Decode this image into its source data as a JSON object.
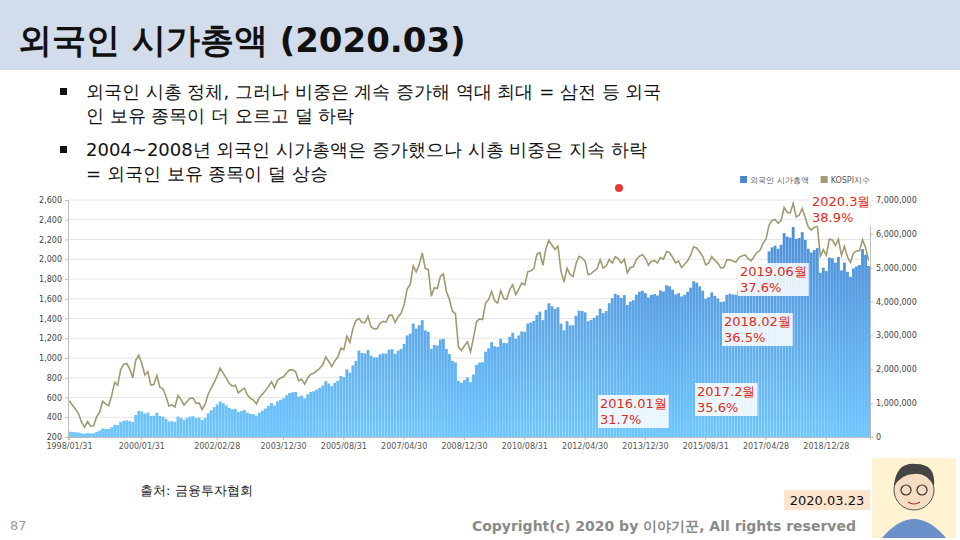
{
  "header": {
    "title": "외국인 시가총액 (2020.03)"
  },
  "bullets": [
    [
      "외국인 시총 정체, 그러나 비중은 계속 증가해 역대 최대 = 삼전 등 외국",
      "인 보유 종목이 더 오르고 덜 하락"
    ],
    [
      "2004~2008년 외국인 시가총액은 증가했으나 시총 비중은 지속 하락",
      "= 외국인 보유 종목이 덜 상승"
    ]
  ],
  "chart_data": {
    "type": "bar",
    "categories": [
      "1998/01/31",
      null,
      null,
      null,
      null,
      null,
      null,
      null,
      null,
      null,
      null,
      null,
      null,
      null,
      null,
      null,
      null,
      null,
      null,
      null,
      null,
      null,
      null,
      null,
      "2000/01/31",
      null,
      null,
      null,
      null,
      null,
      null,
      null,
      null,
      null,
      null,
      null,
      null,
      null,
      null,
      null,
      null,
      null,
      null,
      null,
      null,
      null,
      null,
      null,
      null,
      "2002/02/28",
      null,
      null,
      null,
      null,
      null,
      null,
      null,
      null,
      null,
      null,
      null,
      null,
      null,
      null,
      null,
      null,
      null,
      null,
      null,
      null,
      null,
      "2003/12/30",
      null,
      null,
      null,
      null,
      null,
      null,
      null,
      null,
      null,
      null,
      null,
      null,
      null,
      null,
      null,
      null,
      null,
      null,
      null,
      "2005/08/31",
      null,
      null,
      null,
      null,
      null,
      null,
      null,
      null,
      null,
      null,
      null,
      null,
      null,
      null,
      null,
      null,
      null,
      null,
      null,
      "2007/04/30",
      null,
      null,
      null,
      null,
      null,
      null,
      null,
      null,
      null,
      null,
      null,
      null,
      null,
      null,
      null,
      null,
      null,
      null,
      null,
      "2008/12/30",
      null,
      null,
      null,
      null,
      null,
      null,
      null,
      null,
      null,
      null,
      null,
      null,
      null,
      null,
      null,
      null,
      null,
      null,
      null,
      "2010/08/31",
      null,
      null,
      null,
      null,
      null,
      null,
      null,
      null,
      null,
      null,
      null,
      null,
      null,
      null,
      null,
      null,
      null,
      null,
      null,
      "2012/04/30",
      null,
      null,
      null,
      null,
      null,
      null,
      null,
      null,
      null,
      null,
      null,
      null,
      null,
      null,
      null,
      null,
      null,
      null,
      null,
      "2013/12/30",
      null,
      null,
      null,
      null,
      null,
      null,
      null,
      null,
      null,
      null,
      null,
      null,
      null,
      null,
      null,
      null,
      null,
      null,
      null,
      "2015/08/31",
      null,
      null,
      null,
      null,
      null,
      null,
      null,
      null,
      null,
      null,
      null,
      null,
      null,
      null,
      null,
      null,
      null,
      null,
      null,
      "2017/04/28",
      null,
      null,
      null,
      null,
      null,
      null,
      null,
      null,
      null,
      null,
      null,
      null,
      null,
      null,
      null,
      null,
      null,
      null,
      null,
      "2018/12/28",
      null,
      null,
      null,
      null,
      null,
      null,
      null,
      null,
      null,
      null,
      null,
      null,
      null,
      null
    ],
    "series": [
      {
        "name": "외국인 시가총액",
        "type": "bar",
        "axis": "y2",
        "color": "#4a86d0",
        "values": [
          160000,
          150000,
          140000,
          130000,
          110000,
          95000,
          120000,
          105000,
          110000,
          150000,
          190000,
          250000,
          240000,
          235000,
          290000,
          360000,
          350000,
          440000,
          480000,
          490000,
          470000,
          440000,
          650000,
          770000,
          760000,
          690000,
          720000,
          620000,
          630000,
          720000,
          620000,
          600000,
          540000,
          460000,
          470000,
          450000,
          600000,
          560000,
          510000,
          560000,
          600000,
          610000,
          560000,
          570000,
          500000,
          560000,
          700000,
          790000,
          880000,
          960000,
          1050000,
          1000000,
          930000,
          860000,
          820000,
          830000,
          740000,
          770000,
          800000,
          720000,
          680000,
          670000,
          630000,
          720000,
          780000,
          840000,
          920000,
          1000000,
          930000,
          1050000,
          1100000,
          1140000,
          1230000,
          1300000,
          1320000,
          1330000,
          1190000,
          1220000,
          1140000,
          1260000,
          1330000,
          1350000,
          1400000,
          1450000,
          1520000,
          1650000,
          1580000,
          1500000,
          1600000,
          1660000,
          1800000,
          1770000,
          2000000,
          1900000,
          2120000,
          2250000,
          2550000,
          2480000,
          2470000,
          2570000,
          2400000,
          2350000,
          2350000,
          2440000,
          2470000,
          2460000,
          2580000,
          2590000,
          2450000,
          2550000,
          2600000,
          2750000,
          3000000,
          3050000,
          3350000,
          3200000,
          3300000,
          3450000,
          3150000,
          3100000,
          2600000,
          2720000,
          2700000,
          2880000,
          2900000,
          2600000,
          2450000,
          2250000,
          2200000,
          1660000,
          1600000,
          1680000,
          1760000,
          1620000,
          1850000,
          2130000,
          2200000,
          2210000,
          2520000,
          2620000,
          2800000,
          2680000,
          2660000,
          2900000,
          2780000,
          2770000,
          2960000,
          3080000,
          2900000,
          3000000,
          3120000,
          3100000,
          3350000,
          3380000,
          3430000,
          3600000,
          3700000,
          3450000,
          3750000,
          3950000,
          3860000,
          3780000,
          3830000,
          3350000,
          3150000,
          3420000,
          3300000,
          3300000,
          3580000,
          3730000,
          3720000,
          3680000,
          3420000,
          3460000,
          3520000,
          3590000,
          3790000,
          3660000,
          3720000,
          3950000,
          4100000,
          4230000,
          4190000,
          4110000,
          4190000,
          3900000,
          4000000,
          4040000,
          4200000,
          4290000,
          4320000,
          4250000,
          4120000,
          4200000,
          4220000,
          4180000,
          4330000,
          4300000,
          4480000,
          4450000,
          4350000,
          4210000,
          4250000,
          4150000,
          4200000,
          4290000,
          4410000,
          4600000,
          4560000,
          4450000,
          4320000,
          4080000,
          4130000,
          4270000,
          4170000,
          4090000,
          3990000,
          4000000,
          4200000,
          4230000,
          4210000,
          4200000,
          4330000,
          4400000,
          4450000,
          4400000,
          4360000,
          4600000,
          4700000,
          4780000,
          4980000,
          5100000,
          5480000,
          5600000,
          5650000,
          5560000,
          5680000,
          6020000,
          5920000,
          5890000,
          6200000,
          5850000,
          5880000,
          6050000,
          5820000,
          5560000,
          5450000,
          5520000,
          5580000,
          4850000,
          5000000,
          4900000,
          5300000,
          5280000,
          5150000,
          5320000,
          4920000,
          5150000,
          4880000,
          4730000,
          4980000,
          5040000,
          5080000,
          5550000,
          5380000,
          5050000
        ]
      },
      {
        "name": "KOSPI지수",
        "type": "line",
        "color": "#a09a72",
        "values": [
          567,
          522,
          482,
          438,
          352,
          298,
          356,
          311,
          311,
          403,
          448,
          562,
          536,
          516,
          618,
          752,
          725,
          883,
          936,
          944,
          888,
          800,
          980,
          1028,
          944,
          828,
          861,
          726,
          731,
          822,
          705,
          689,
          613,
          514,
          526,
          504,
          621,
          579,
          524,
          560,
          592,
          595,
          541,
          545,
          479,
          530,
          633,
          693,
          752,
          819,
          895,
          847,
          796,
          742,
          716,
          724,
          646,
          673,
          694,
          627,
          591,
          575,
          535,
          600,
          634,
          670,
          710,
          760,
          697,
          775,
          797,
          810,
          848,
          880,
          880,
          863,
          770,
          785,
          735,
          797,
          835,
          845,
          870,
          896,
          932,
          1011,
          965,
          912,
          970,
          1009,
          1100,
          1083,
          1221,
          1158,
          1297,
          1379,
          1399,
          1361,
          1359,
          1420,
          1317,
          1295,
          1297,
          1352,
          1371,
          1364,
          1432,
          1434,
          1360,
          1417,
          1452,
          1542,
          1700,
          1743,
          1933,
          1873,
          1946,
          2064,
          1906,
          1897,
          1625,
          1711,
          1704,
          1825,
          1852,
          1674,
          1594,
          1474,
          1448,
          1113,
          1077,
          1124,
          1162,
          1063,
          1206,
          1369,
          1396,
          1390,
          1557,
          1591,
          1673,
          1580,
          1555,
          1682,
          1602,
          1594,
          1692,
          1741,
          1641,
          1698,
          1759,
          1742,
          1873,
          1883,
          1905,
          2051,
          2069,
          1939,
          2106,
          2192,
          2142,
          2100,
          2133,
          1880,
          1769,
          1909,
          1847,
          1826,
          1955,
          2030,
          2014,
          1982,
          1843,
          1854,
          1881,
          1905,
          1996,
          1912,
          1932,
          1997,
          1961,
          2026,
          2005,
          1963,
          2001,
          1863,
          1914,
          1926,
          1997,
          2030,
          2045,
          2011,
          1941,
          1980,
          1986,
          1961,
          2017,
          2002,
          2076,
          2068,
          2020,
          1964,
          1981,
          1916,
          1949,
          1985,
          2041,
          2127,
          2114,
          2074,
          2030,
          1941,
          1963,
          2029,
          1991,
          1961,
          1912,
          1916,
          1995,
          1994,
          1983,
          1970,
          2016,
          2034,
          2043,
          2008,
          1983,
          2026,
          2067,
          2091,
          2160,
          2205,
          2347,
          2392,
          2402,
          2363,
          2394,
          2523,
          2476,
          2467,
          2566,
          2427,
          2445,
          2515,
          2423,
          2326,
          2295,
          2322,
          2343,
          2030,
          2096,
          2041,
          2204,
          2195,
          2140,
          2203,
          2041,
          2130,
          2025,
          1967,
          2063,
          2083,
          2087,
          2197,
          2119,
          1987
        ]
      }
    ],
    "ylim": [
      200,
      2600
    ],
    "yticks": [
      200,
      400,
      600,
      800,
      {
        "value": 1000,
        "label": "1,000"
      },
      {
        "value": 1200,
        "label": "1,200"
      },
      {
        "value": 1400,
        "label": "1,400"
      },
      {
        "value": 1600,
        "label": "1,600"
      },
      {
        "value": 1800,
        "label": "1,800"
      },
      {
        "value": 2000,
        "label": "2,000"
      },
      {
        "value": 2200,
        "label": "2,200"
      },
      {
        "value": 2400,
        "label": "2,400"
      },
      {
        "value": 2600,
        "label": "2,600"
      }
    ],
    "y2lim": [
      0,
      7000000
    ],
    "y2ticks": [
      0,
      {
        "value": 1000000,
        "label": "1,000,000"
      },
      {
        "value": 2000000,
        "label": "2,000,000"
      },
      {
        "value": 3000000,
        "label": "3,000,000"
      },
      {
        "value": 4000000,
        "label": "4,000,000"
      },
      {
        "value": 5000000,
        "label": "5,000,000"
      },
      {
        "value": 6000000,
        "label": "6,000,000"
      },
      {
        "value": 7000000,
        "label": "7,000,000"
      }
    ],
    "grid": true,
    "legend": "top-right",
    "annotations": [
      {
        "label": "2016.01월",
        "text": "31.7%"
      },
      {
        "label": "2017.2월",
        "text": "35.6%"
      },
      {
        "label": "2018.02월",
        "text": "36.5%"
      },
      {
        "label": "2019.06월",
        "text": "37.6%"
      },
      {
        "label": "2020.3월",
        "text": "38.9%"
      }
    ]
  },
  "source": "출처: 금융투자협회",
  "footer": {
    "page": 87,
    "copyright": "Copyright(c) 2020 by 이야기꾼, All rights reserved",
    "date": "2020.03.23"
  }
}
